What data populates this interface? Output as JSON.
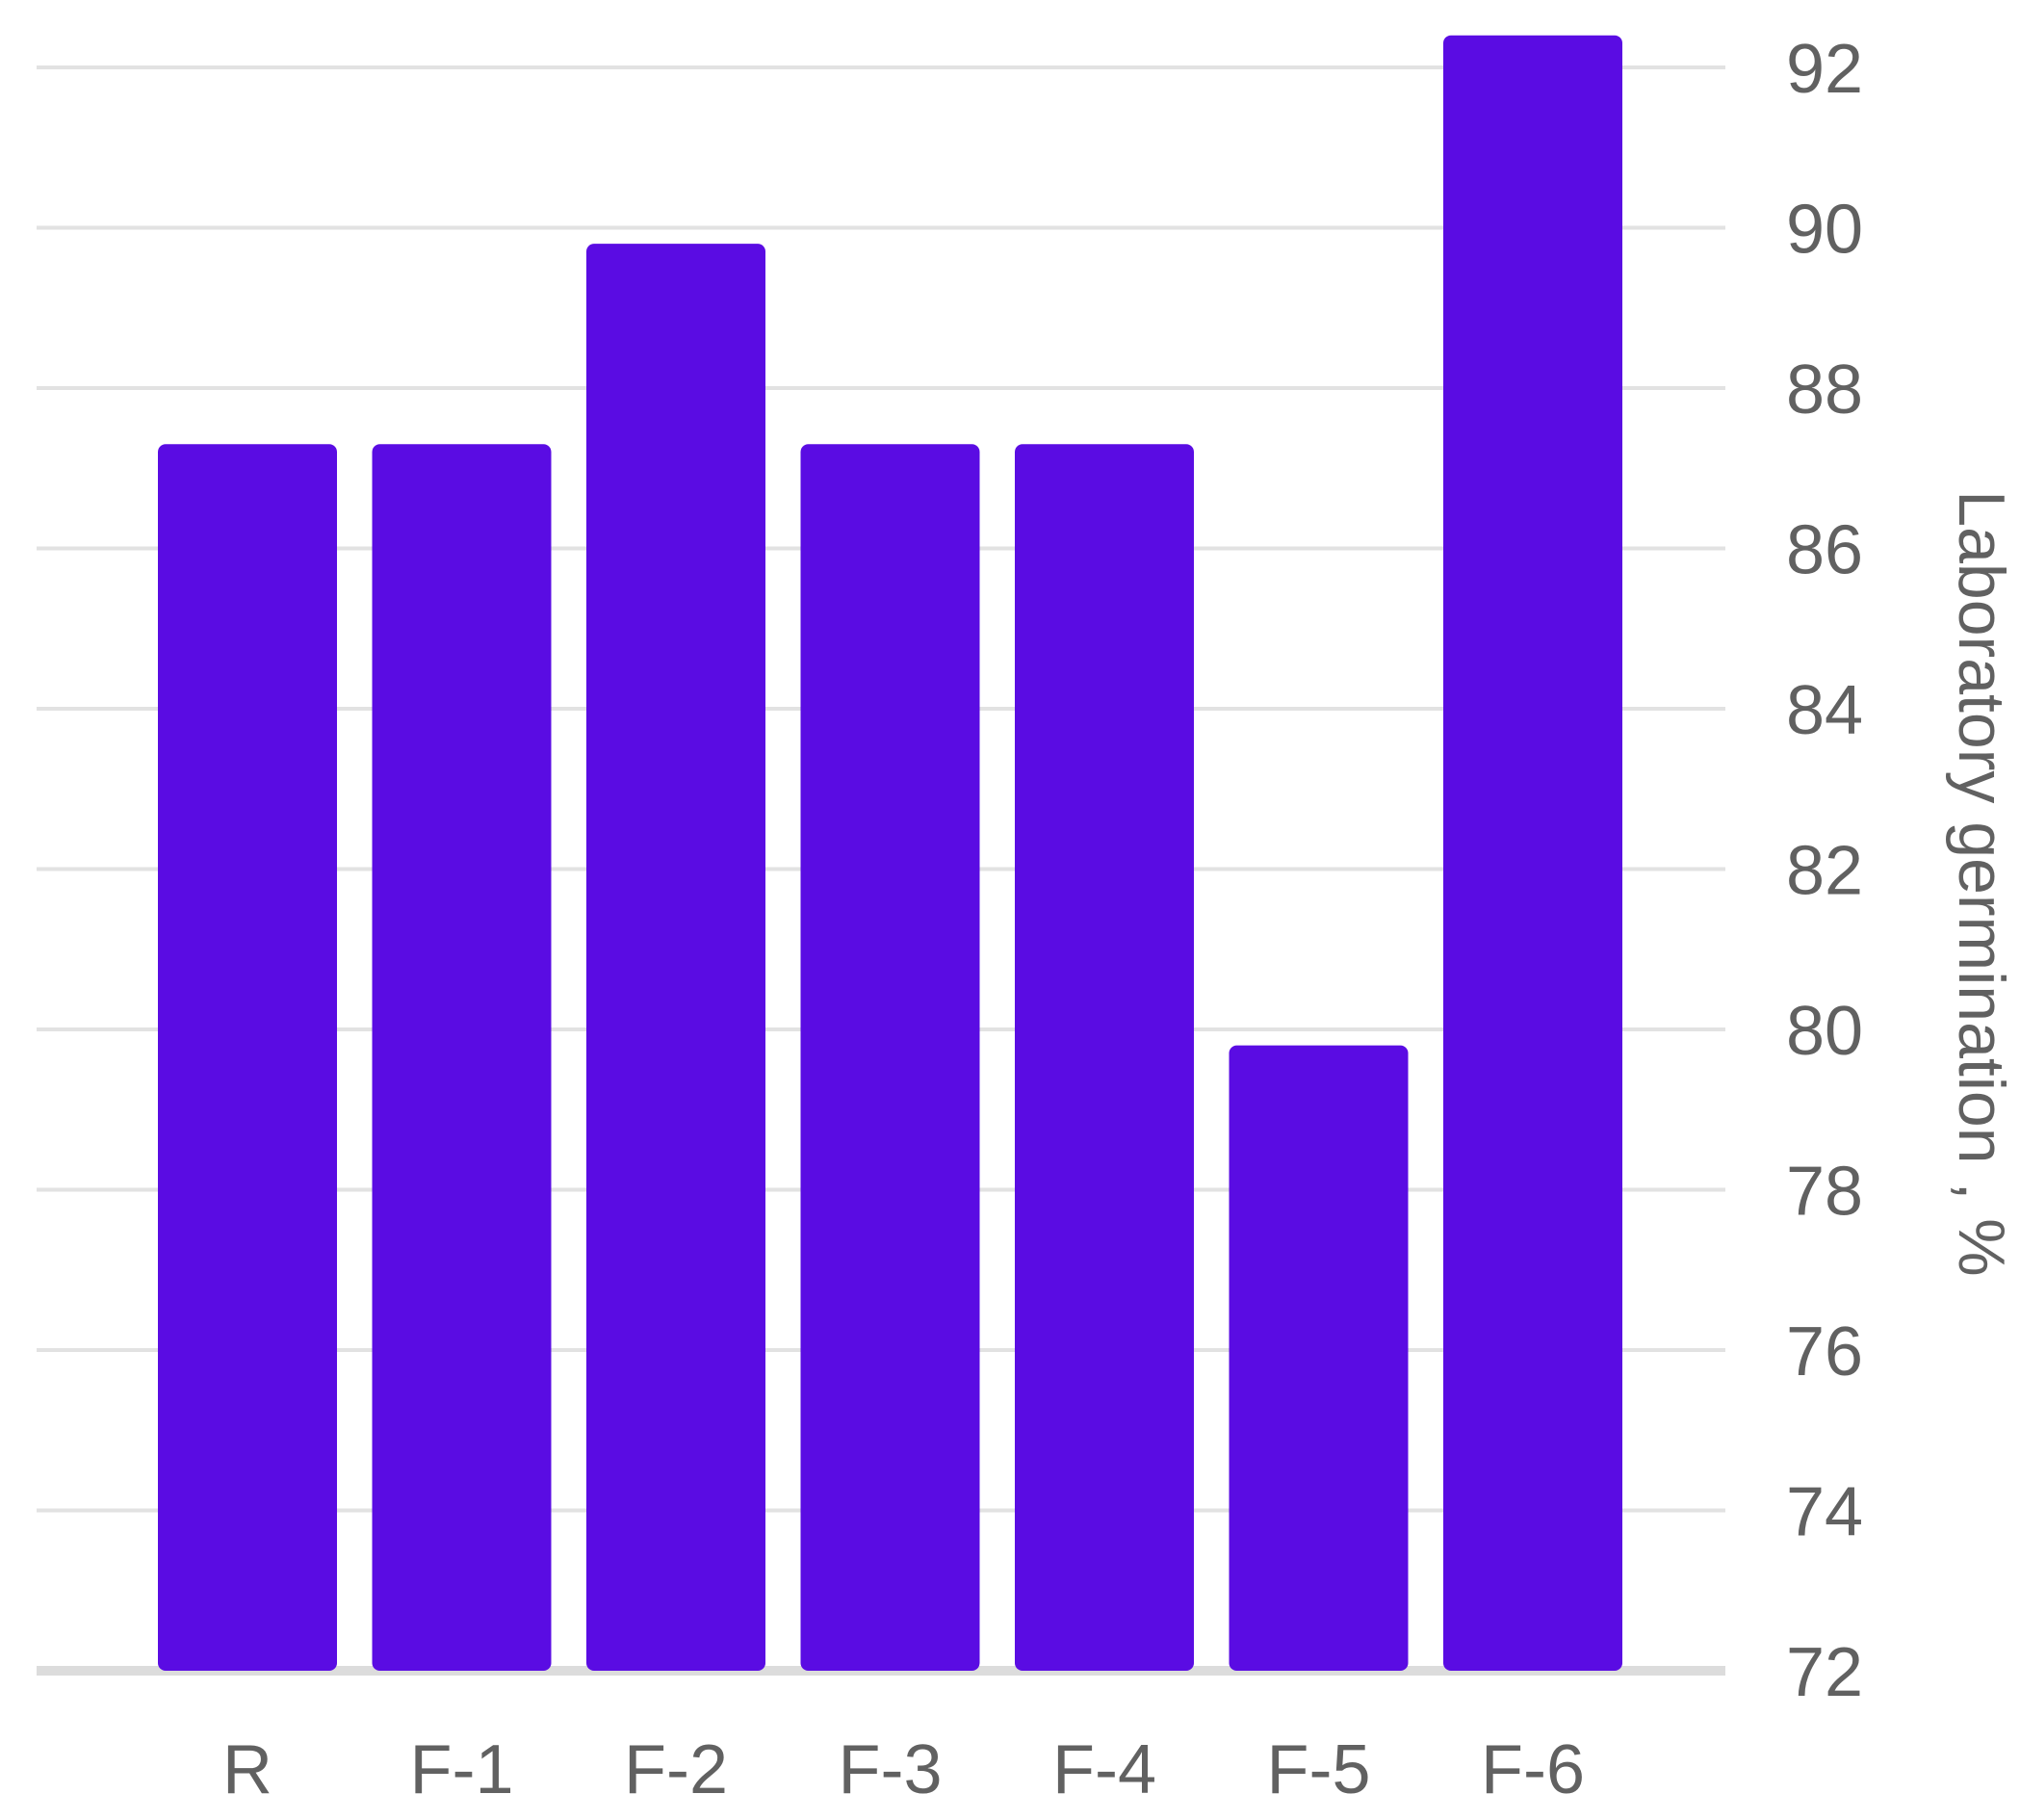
{
  "chart_data": {
    "type": "bar",
    "categories": [
      "R",
      "F-1",
      "F-2",
      "F-3",
      "F-4",
      "F-5",
      "F-6"
    ],
    "values": [
      87.3,
      87.3,
      89.8,
      87.3,
      87.3,
      79.8,
      92.4
    ],
    "title": "",
    "xlabel": "",
    "ylabel": "Laboratory germination , %",
    "ylim": [
      72,
      92
    ],
    "yticks": [
      72,
      74,
      76,
      78,
      80,
      82,
      84,
      86,
      88,
      90,
      92
    ],
    "y_axis_side": "right",
    "grid": true,
    "bar_color": "#5a0ce3"
  }
}
